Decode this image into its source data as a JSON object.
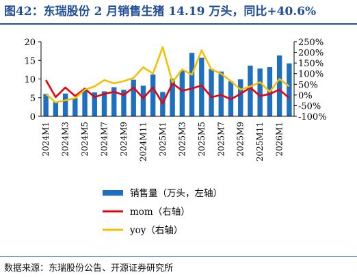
{
  "header": {
    "title": "图42：东瑞股份 2 月销售生猪 14.19 万头，同比+40.6%"
  },
  "footer": {
    "source": "数据来源：东瑞股份公告、开源证券研究所"
  },
  "colors": {
    "title": "#1f4e9a",
    "bar": "#1e6fbf",
    "mom": "#e8000b",
    "yoy": "#f6c000"
  },
  "chart_data": {
    "type": "bar",
    "title": "",
    "xlabel": "",
    "ylabel": "",
    "ylim": [
      0,
      20
    ],
    "y_ticks": [
      "20",
      "15",
      "10",
      "5",
      "0"
    ],
    "y2lim": [
      -100,
      250
    ],
    "y2_ticks": [
      "250%",
      "200%",
      "150%",
      "100%",
      "50%",
      "0%",
      "-50%",
      "-100%"
    ],
    "grid": false,
    "legend_position": "bottom",
    "x_tick_labels": [
      "2024M1",
      "2024M3",
      "2024M5",
      "2024M7",
      "2024M9",
      "2024M11",
      "2025M1",
      "2025M3",
      "2025M5",
      "2025M7",
      "2025M9",
      "2025M11",
      "2026M1"
    ],
    "categories": [
      "2024M1",
      "2024M2",
      "2024M3",
      "2024M4",
      "2024M5",
      "2024M6",
      "2024M7",
      "2024M8",
      "2024M9",
      "2024M10",
      "2024M11",
      "2024M12",
      "2025M1",
      "2025M2",
      "2025M3",
      "2025M4",
      "2025M5",
      "2025M6",
      "2025M7",
      "2025M8",
      "2025M9",
      "2025M10",
      "2025M11",
      "2025M12",
      "2026M1",
      "2026M2"
    ],
    "series": [
      {
        "name": "销售量（万头，左轴）",
        "type": "bar",
        "axis": "left",
        "values": [
          6.0,
          3.8,
          6.1,
          4.9,
          7.2,
          6.4,
          6.7,
          7.8,
          7.1,
          9.8,
          8.2,
          11.2,
          6.5,
          10.1,
          12.3,
          17.0,
          15.7,
          12.7,
          12.0,
          9.4,
          9.9,
          13.6,
          12.8,
          13.2,
          16.3,
          14.19
        ]
      },
      {
        "name": "mom（右轴）",
        "type": "line",
        "axis": "right",
        "values": [
          70,
          -10,
          35,
          -5,
          30,
          -10,
          5,
          15,
          0,
          35,
          -15,
          35,
          -40,
          55,
          20,
          30,
          45,
          -10,
          0,
          -20,
          5,
          35,
          -5,
          5,
          25,
          -15
        ]
      },
      {
        "name": "yoy（右轴）",
        "type": "line",
        "axis": "right",
        "values": [
          5,
          -35,
          -25,
          -15,
          25,
          40,
          70,
          55,
          65,
          80,
          130,
          100,
          225,
          60,
          120,
          95,
          210,
          120,
          100,
          65,
          25,
          40,
          60,
          15,
          75,
          40.6
        ]
      }
    ]
  }
}
